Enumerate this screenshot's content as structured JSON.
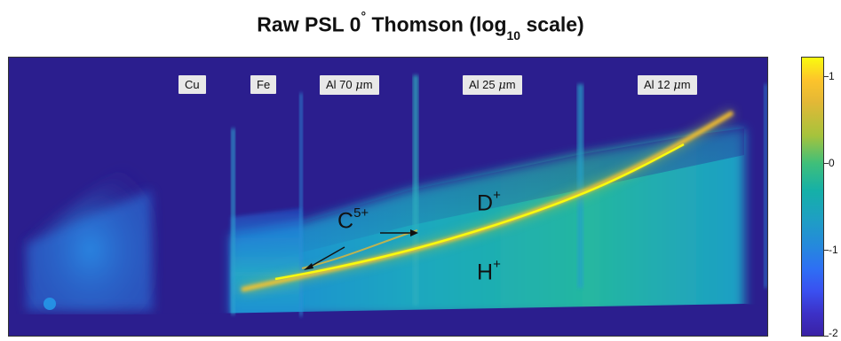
{
  "title": {
    "prefix": "Raw PSL 0",
    "degree": "°",
    "middle": " Thomson (log",
    "sub": "10",
    "suffix": " scale)"
  },
  "filter_labels": [
    {
      "id": "cu",
      "text": "Cu"
    },
    {
      "id": "fe",
      "text": "Fe"
    },
    {
      "id": "al70",
      "text": "Al 70 ",
      "unit_mu": "μ",
      "unit_rest": "m"
    },
    {
      "id": "al25",
      "text": "Al 25 ",
      "unit_mu": "μ",
      "unit_rest": "m"
    },
    {
      "id": "al12",
      "text": "Al 12 ",
      "unit_mu": "μ",
      "unit_rest": "m"
    }
  ],
  "species": {
    "carbon": {
      "base": "C",
      "charge": "5+"
    },
    "deuteron": {
      "base": "D",
      "charge": "+"
    },
    "proton": {
      "base": "H",
      "charge": "+"
    }
  },
  "colorbar": {
    "ticks": [
      "1",
      "0",
      "-1",
      "-2"
    ],
    "colormap": "parula",
    "colors": {
      "high": "#f9fb0e",
      "mid": "#15b0a8",
      "low": "#3a21a5",
      "background": "#2b1e8e"
    }
  }
}
